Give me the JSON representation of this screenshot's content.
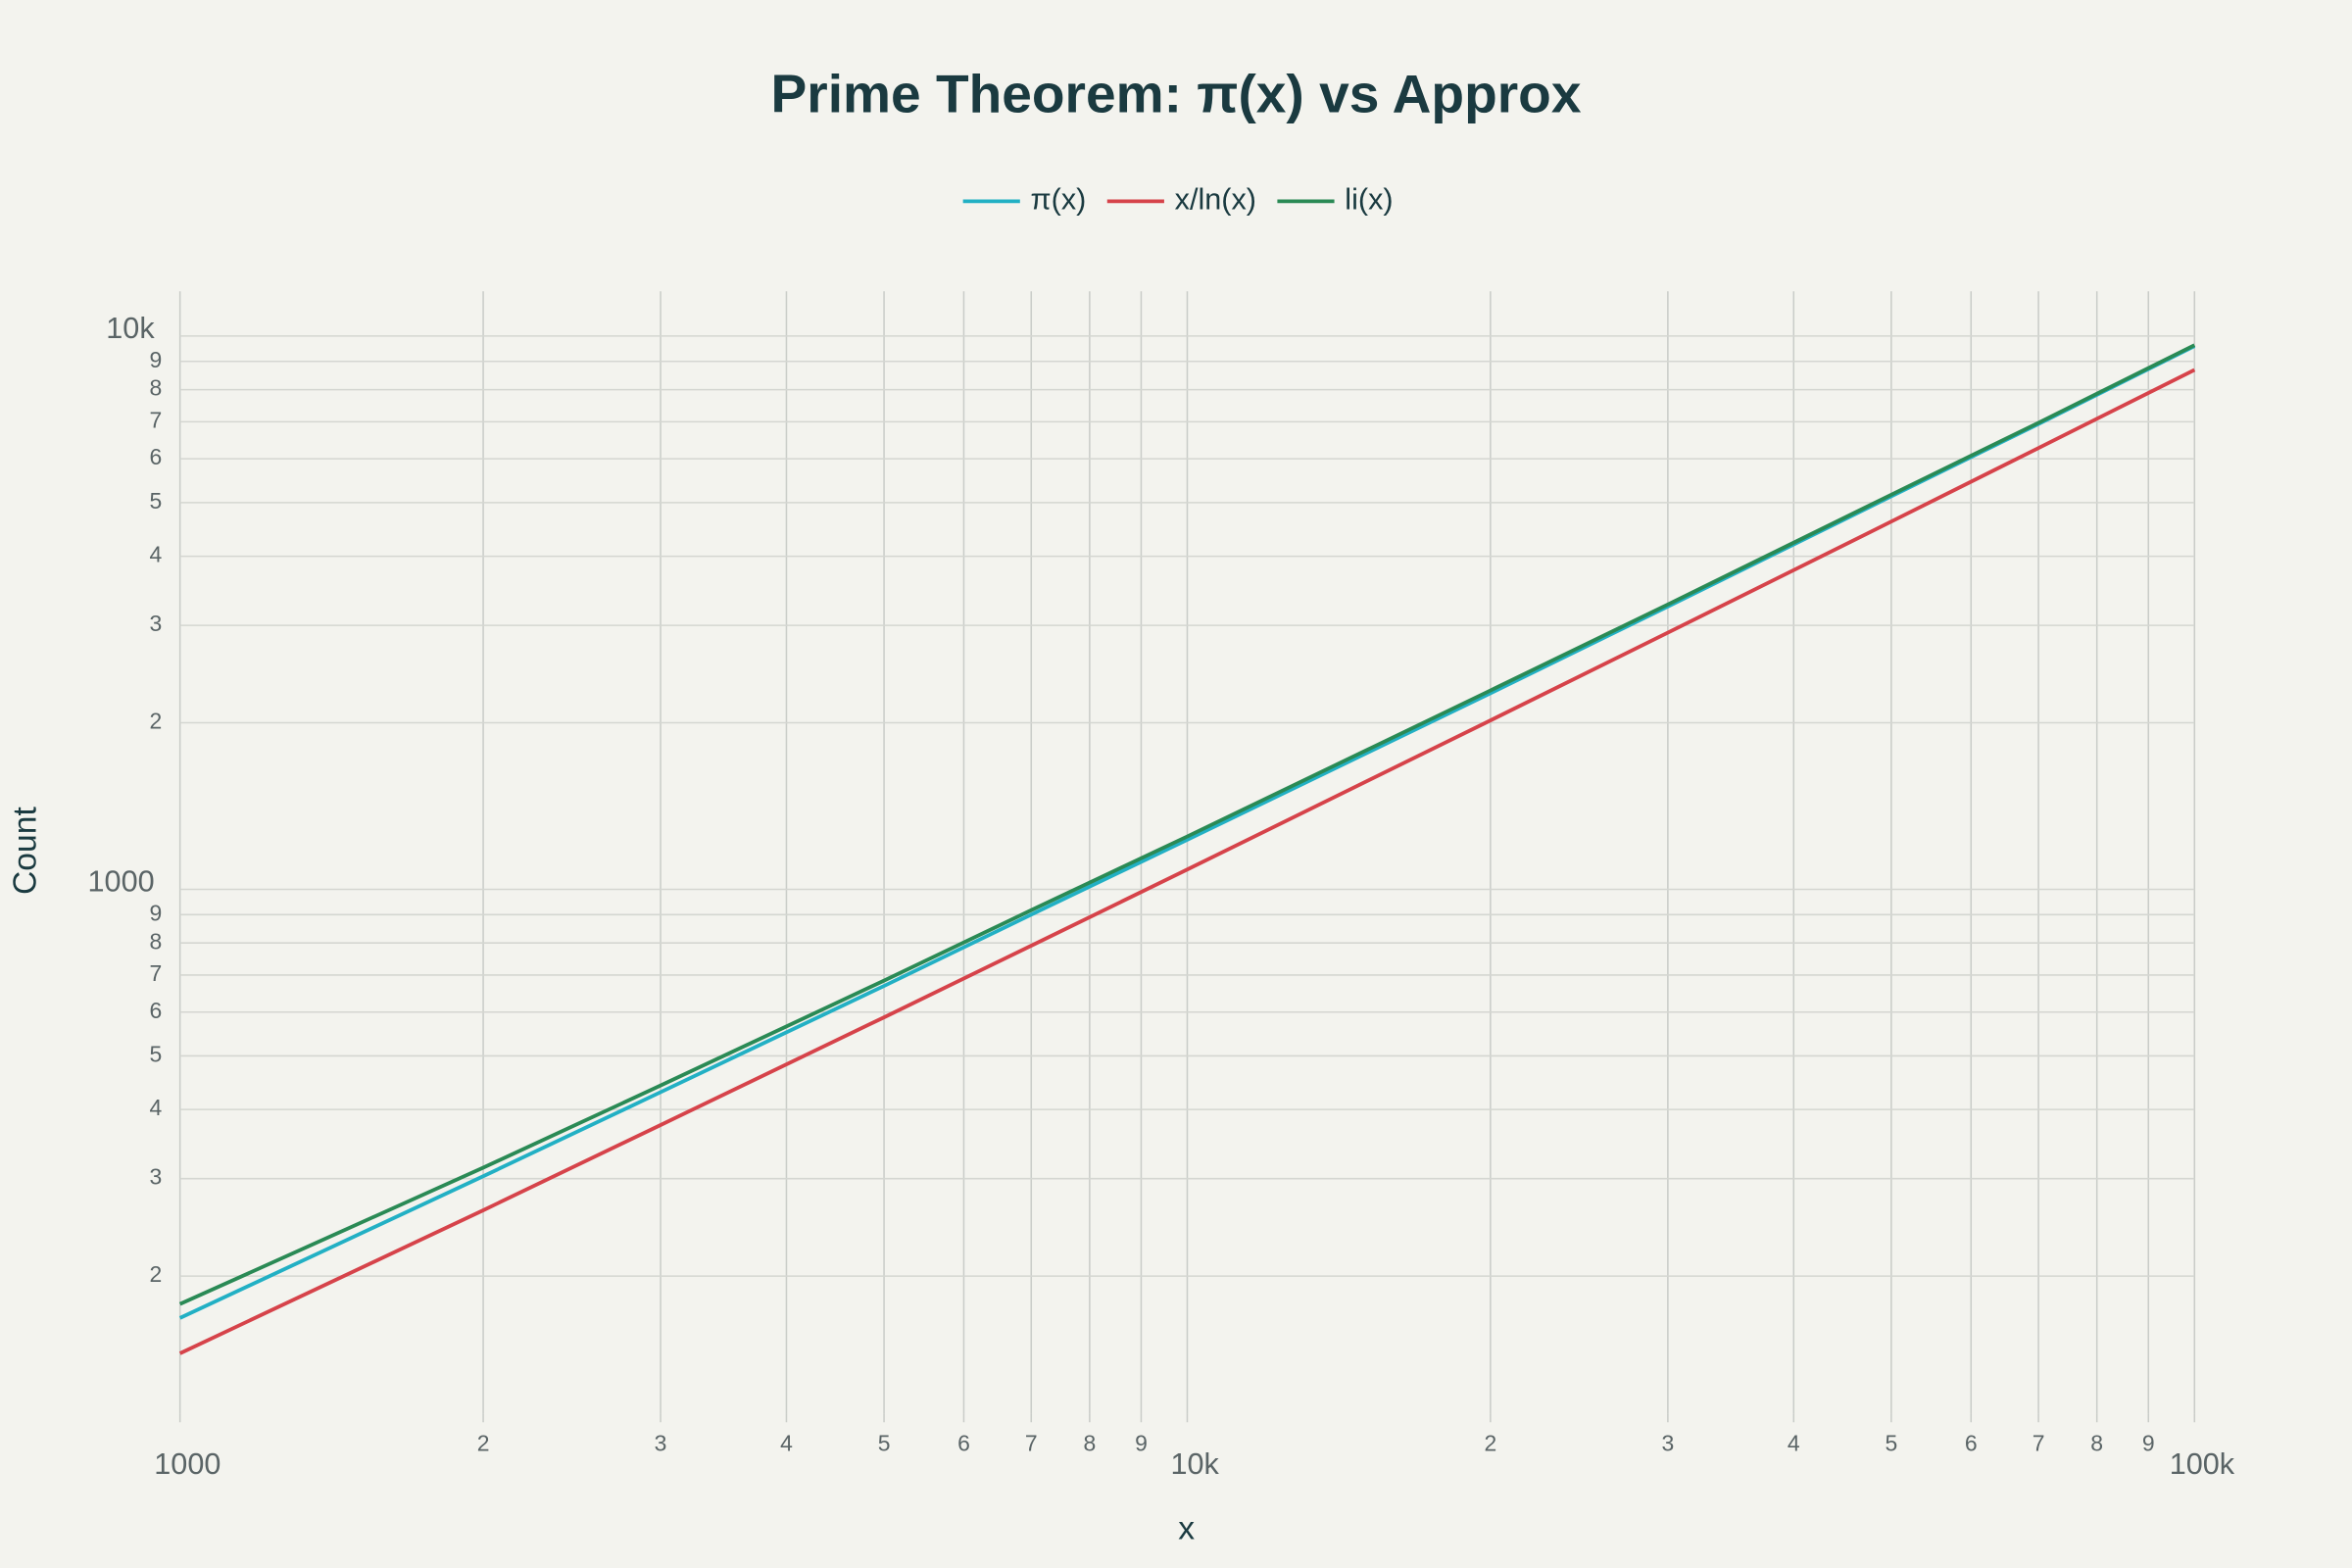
{
  "chart_data": {
    "type": "line",
    "title": "Prime Theorem: π(x) vs Approx",
    "x_label": "x",
    "y_label": "Count",
    "x": [
      1000,
      2000,
      3000,
      5000,
      7000,
      10000,
      20000,
      30000,
      50000,
      70000,
      100000
    ],
    "series": [
      {
        "name": "π(x)",
        "color": "#22b0c4",
        "values": [
          168,
          303,
          430,
          669,
          900,
          1229,
          2262,
          3245,
          5133,
          6935,
          9592
        ]
      },
      {
        "name": "x/ln(x)",
        "color": "#d6434a",
        "values": [
          145,
          263,
          375,
          587,
          791,
          1086,
          2020,
          2910,
          4621,
          6275,
          8686
        ]
      },
      {
        "name": "li(x)",
        "color": "#2a8a55",
        "values": [
          178,
          314,
          442,
          684,
          917,
          1246,
          2288,
          3272,
          5167,
          6970,
          9630
        ]
      }
    ],
    "log_x": true,
    "log_y": true,
    "grid": true,
    "legend": "top",
    "xlim": [
      1000,
      100000
    ],
    "ylim": [
      113,
      12050
    ],
    "xticks": [
      1000,
      {
        "value": 2000,
        "label": "2"
      },
      {
        "value": 3000,
        "label": "3"
      },
      {
        "value": 4000,
        "label": "4"
      },
      {
        "value": 5000,
        "label": "5"
      },
      {
        "value": 6000,
        "label": "6"
      },
      {
        "value": 7000,
        "label": "7"
      },
      {
        "value": 8000,
        "label": "8"
      },
      {
        "value": 9000,
        "label": "9"
      },
      {
        "value": 10000,
        "label": "10k"
      },
      {
        "value": 20000,
        "label": "2"
      },
      {
        "value": 30000,
        "label": "3"
      },
      {
        "value": 40000,
        "label": "4"
      },
      {
        "value": 50000,
        "label": "5"
      },
      {
        "value": 60000,
        "label": "6"
      },
      {
        "value": 70000,
        "label": "7"
      },
      {
        "value": 80000,
        "label": "8"
      },
      {
        "value": 90000,
        "label": "9"
      },
      {
        "value": 100000,
        "label": "100k"
      }
    ],
    "yticks": [
      {
        "value": 200,
        "label": "2"
      },
      {
        "value": 300,
        "label": "3"
      },
      {
        "value": 400,
        "label": "4"
      },
      {
        "value": 500,
        "label": "5"
      },
      {
        "value": 600,
        "label": "6"
      },
      {
        "value": 700,
        "label": "7"
      },
      {
        "value": 800,
        "label": "8"
      },
      {
        "value": 900,
        "label": "9"
      },
      1000,
      {
        "value": 2000,
        "label": "2"
      },
      {
        "value": 3000,
        "label": "3"
      },
      {
        "value": 4000,
        "label": "4"
      },
      {
        "value": 5000,
        "label": "5"
      },
      {
        "value": 6000,
        "label": "6"
      },
      {
        "value": 7000,
        "label": "7"
      },
      {
        "value": 8000,
        "label": "8"
      },
      {
        "value": 9000,
        "label": "9"
      },
      {
        "value": 10000,
        "label": "10k"
      }
    ]
  }
}
